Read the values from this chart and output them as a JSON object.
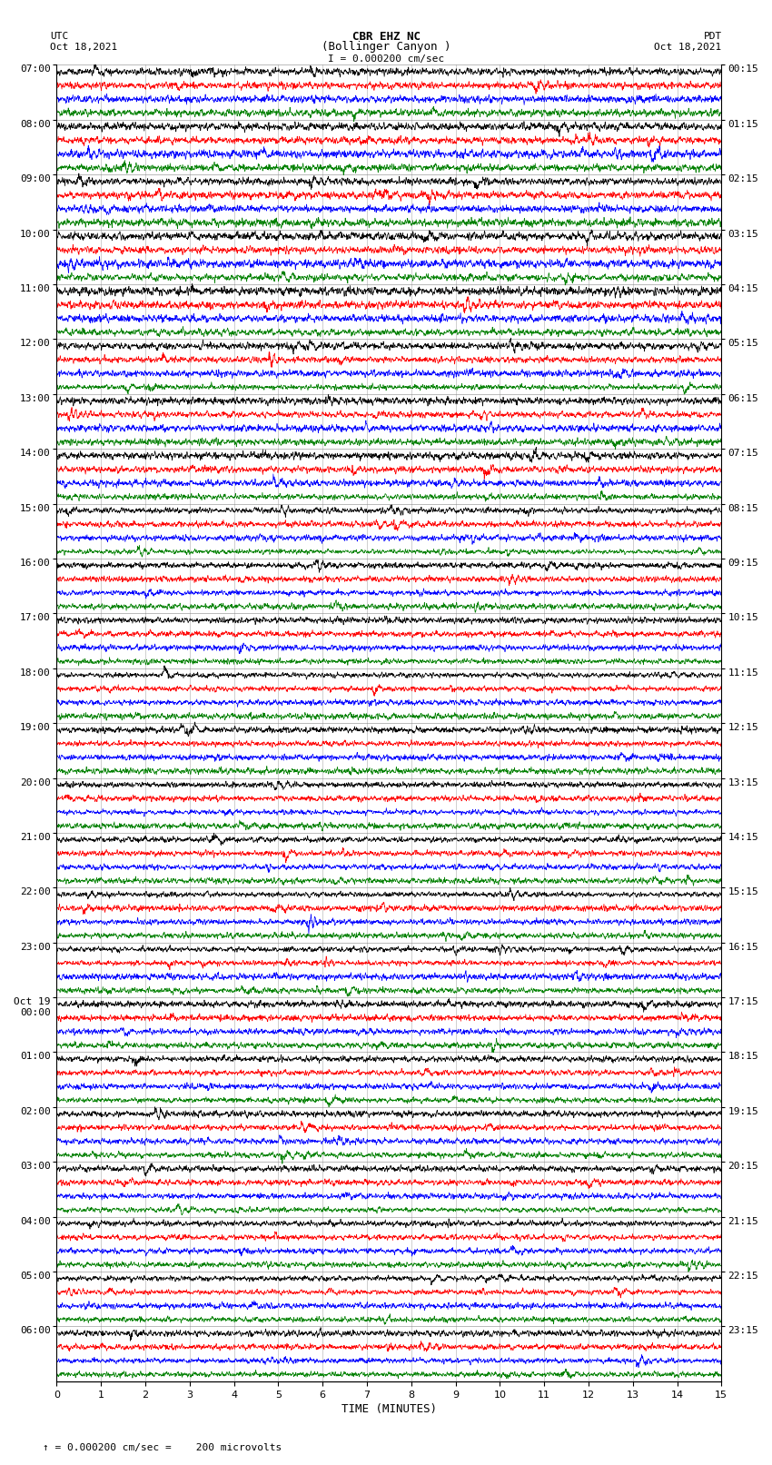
{
  "title_line1": "CBR EHZ NC",
  "title_line2": "(Bollinger Canyon )",
  "scale_label": "I = 0.000200 cm/sec",
  "left_header": "UTC",
  "left_date": "Oct 18,2021",
  "right_header": "PDT",
  "right_date": "Oct 18,2021",
  "bottom_label": "TIME (MINUTES)",
  "footer_text": "= 0.000200 cm/sec =    200 microvolts",
  "utc_labels": [
    "07:00",
    "08:00",
    "09:00",
    "10:00",
    "11:00",
    "12:00",
    "13:00",
    "14:00",
    "15:00",
    "16:00",
    "17:00",
    "18:00",
    "19:00",
    "20:00",
    "21:00",
    "22:00",
    "23:00",
    "Oct 19\n00:00",
    "01:00",
    "02:00",
    "03:00",
    "04:00",
    "05:00",
    "06:00"
  ],
  "pdt_labels": [
    "00:15",
    "01:15",
    "02:15",
    "03:15",
    "04:15",
    "05:15",
    "06:15",
    "07:15",
    "08:15",
    "09:15",
    "10:15",
    "11:15",
    "12:15",
    "13:15",
    "14:15",
    "15:15",
    "16:15",
    "17:15",
    "18:15",
    "19:15",
    "20:15",
    "21:15",
    "22:15",
    "23:15"
  ],
  "colors": [
    "black",
    "red",
    "blue",
    "green"
  ],
  "n_rows": 24,
  "traces_per_row": 4,
  "bg_color": "white",
  "grid_color": "#888888",
  "font_size": 8,
  "title_font_size": 9,
  "lw": 0.5
}
